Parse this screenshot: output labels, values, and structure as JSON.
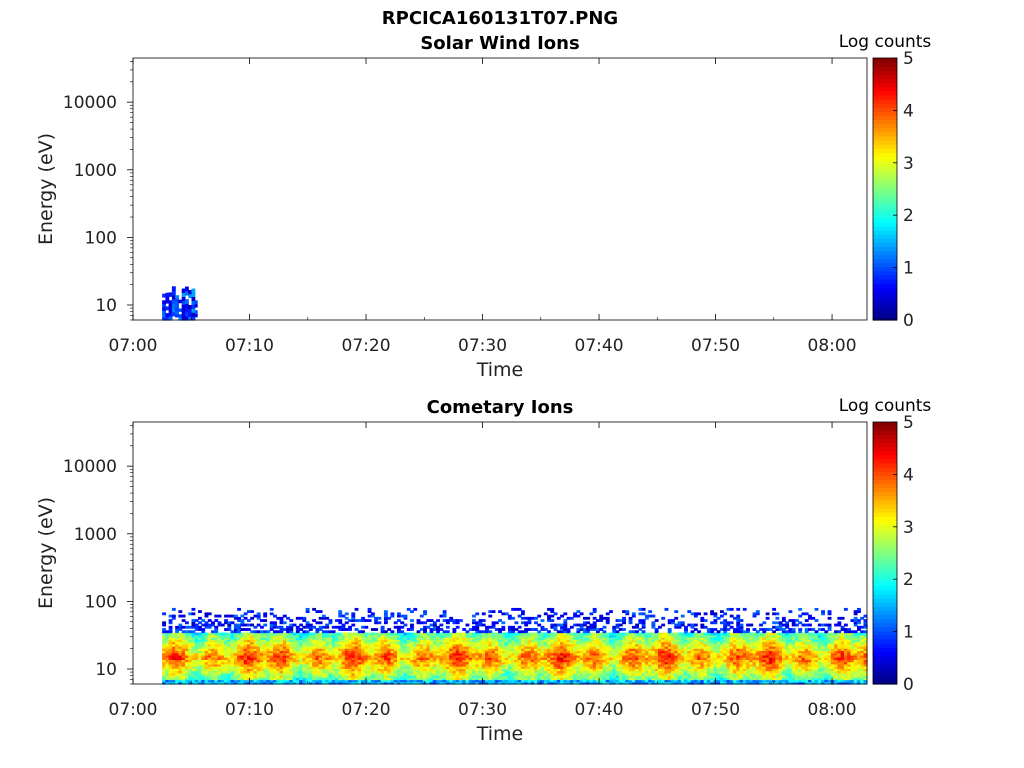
{
  "figure_title": "RPCICA160131T07.PNG",
  "chart_data": [
    {
      "type": "heatmap",
      "title": "Solar Wind Ions",
      "xlabel": "Time",
      "ylabel": "Energy (eV)",
      "x_ticks": [
        "07:00",
        "07:10",
        "07:20",
        "07:30",
        "07:40",
        "07:50",
        "08:00"
      ],
      "x_range": [
        "07:00",
        "08:03"
      ],
      "y_ticks": [
        "10",
        "100",
        "1000",
        "10000"
      ],
      "y_scale": "log",
      "y_range": [
        6,
        45000
      ],
      "colorbar": {
        "label": "Log counts",
        "ticks": [
          "0",
          "1",
          "2",
          "3",
          "4",
          "5"
        ],
        "range": [
          0,
          5
        ],
        "colormap": "jet"
      },
      "data_description": {
        "time_span": [
          "07:02.5",
          "07:05.5"
        ],
        "energy_span_eV": [
          6,
          20
        ],
        "log_counts_range": [
          0.3,
          1.5
        ]
      }
    },
    {
      "type": "heatmap",
      "title": "Cometary Ions",
      "xlabel": "Time",
      "ylabel": "Energy (eV)",
      "x_ticks": [
        "07:00",
        "07:10",
        "07:20",
        "07:30",
        "07:40",
        "07:50",
        "08:00"
      ],
      "x_range": [
        "07:00",
        "08:03"
      ],
      "y_ticks": [
        "10",
        "100",
        "1000",
        "10000"
      ],
      "y_scale": "log",
      "y_range": [
        6,
        45000
      ],
      "colorbar": {
        "label": "Log counts",
        "ticks": [
          "0",
          "1",
          "2",
          "3",
          "4",
          "5"
        ],
        "range": [
          0,
          5
        ],
        "colormap": "jet"
      },
      "data_description": {
        "time_span": [
          "07:02.5",
          "08:03"
        ],
        "energy_span_eV": [
          6,
          80
        ],
        "peak_energy_eV": 15,
        "peak_log_counts": 3.8
      }
    }
  ]
}
